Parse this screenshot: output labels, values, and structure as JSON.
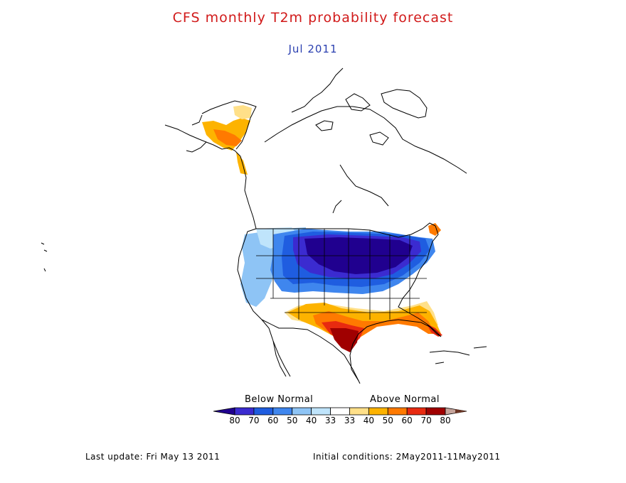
{
  "title": "CFS monthly T2m probability forecast",
  "subtitle": "Jul 2011",
  "colors": {
    "title": "#d11a1a",
    "subtitle": "#2a3fb0",
    "land_outline": "#000000",
    "below_80": "#20008f",
    "below_70": "#3b2bd0",
    "below_60": "#1f5de0",
    "below_50": "#3f86ee",
    "below_40": "#8ec4f5",
    "below_33": "#bfe4fb",
    "normal": "#ffffff",
    "above_33": "#ffe089",
    "above_40": "#fdb300",
    "above_50": "#ff7a00",
    "above_60": "#e82a10",
    "above_70": "#a00000",
    "above_80": "#c6a49b",
    "extreme": "#6b3524"
  },
  "legend": {
    "below_label": "Below Normal",
    "above_label": "Above Normal",
    "ticks": [
      "80",
      "70",
      "60",
      "50",
      "40",
      "33",
      "33",
      "40",
      "50",
      "60",
      "70",
      "80"
    ]
  },
  "footer": {
    "last_update": "Last update: Fri May 13 2011",
    "initial_conditions": "Initial conditions: 2May2011-11May2011"
  }
}
